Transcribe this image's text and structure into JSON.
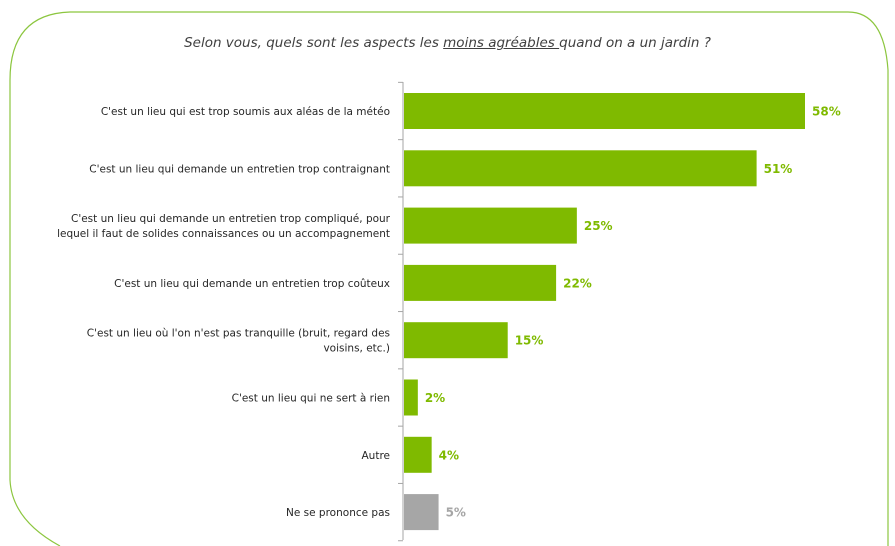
{
  "chart_data": {
    "type": "bar",
    "orientation": "horizontal",
    "title": {
      "before": "Selon vous, quels sont les aspects les ",
      "emphasis": "moins agréables ",
      "after": "quand on a un jardin ?"
    },
    "categories": [
      [
        "C'est un lieu qui est trop soumis aux aléas de la météo"
      ],
      [
        "C'est un lieu qui demande un entretien trop contraignant"
      ],
      [
        "C'est un lieu qui demande un entretien trop compliqué, pour",
        "lequel il faut de solides connaissances ou un accompagnement"
      ],
      [
        "C'est un lieu qui demande un entretien trop coûteux"
      ],
      [
        "C'est un lieu où l'on n'est pas tranquille (bruit, regard des",
        "voisins, etc.)"
      ],
      [
        "C'est un lieu qui ne sert à rien"
      ],
      [
        "Autre"
      ],
      [
        "Ne se prononce pas"
      ]
    ],
    "values": [
      58,
      51,
      25,
      22,
      15,
      2,
      4,
      5
    ],
    "value_labels": [
      "58%",
      "51%",
      "25%",
      "22%",
      "15%",
      "2%",
      "4%",
      "5%"
    ],
    "colors": [
      "#7fba00",
      "#7fba00",
      "#7fba00",
      "#7fba00",
      "#7fba00",
      "#7fba00",
      "#7fba00",
      "#a6a6a6"
    ],
    "xlim": [
      0,
      58
    ],
    "grid": false,
    "legend": "none"
  },
  "frame_color": "#8cc63f"
}
